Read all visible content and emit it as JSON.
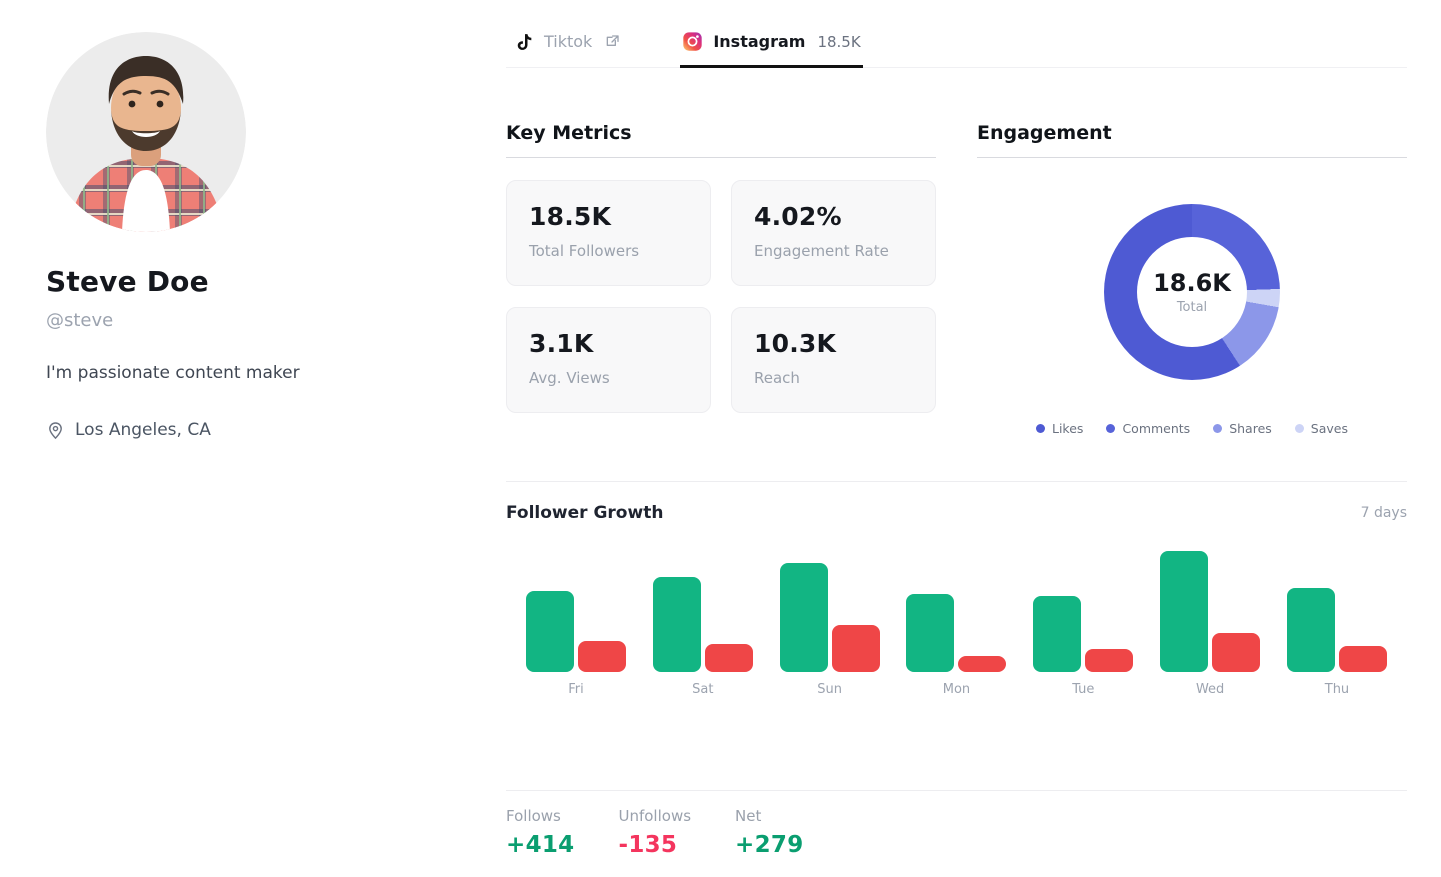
{
  "profile": {
    "name": "Steve Doe",
    "handle": "@steve",
    "bio": "I'm passionate content maker",
    "location": "Los Angeles, CA",
    "avatar_description": "smiling man with dark hair and beard wearing red plaid shirt"
  },
  "tabs": [
    {
      "label": "Tiktok",
      "active": false
    },
    {
      "label": "Instagram",
      "count": "18.5K",
      "active": true
    }
  ],
  "key_metrics": {
    "title": "Key Metrics",
    "cards": [
      {
        "value": "18.5K",
        "label": "Total Followers"
      },
      {
        "value": "4.02%",
        "label": "Engagement Rate"
      },
      {
        "value": "3.1K",
        "label": "Avg. Views"
      },
      {
        "value": "10.3K",
        "label": "Reach"
      }
    ]
  },
  "engagement": {
    "title": "Engagement",
    "center_value": "18.6K",
    "center_label": "Total"
  },
  "follower_growth": {
    "title": "Follower Growth",
    "period": "7 days",
    "stats": [
      {
        "label": "Follows",
        "value": "+414",
        "color": "#0a9e70"
      },
      {
        "label": "Unfollows",
        "value": "-135",
        "color": "#f4355e"
      },
      {
        "label": "Net",
        "value": "+279",
        "color": "#0a9e70"
      }
    ]
  },
  "chart_data": [
    {
      "type": "pie",
      "title": "Engagement",
      "style": "donut",
      "center_label": "18.6K",
      "center_sublabel": "Total",
      "legend_position": "bottom",
      "segments": [
        {
          "label": "Likes",
          "percent": 59,
          "color": "#4e5ad3"
        },
        {
          "label": "Comments",
          "percent": 25,
          "color": "#5763d9"
        },
        {
          "label": "Shares",
          "percent": 13,
          "color": "#8c97e9"
        },
        {
          "label": "Saves",
          "percent": 3,
          "color": "#cdd4f6"
        }
      ],
      "arcs_deg_clockwise_from_top": [
        {
          "label": "Comments",
          "color": "#5763d9",
          "from": 0,
          "to": 88
        },
        {
          "label": "Saves",
          "color": "#cdd4f6",
          "from": 88,
          "to": 100
        },
        {
          "label": "Shares",
          "color": "#8c97e9",
          "from": 100,
          "to": 147
        },
        {
          "label": "Likes",
          "color": "#4e5ad3",
          "from": 147,
          "to": 360
        }
      ]
    },
    {
      "type": "bar",
      "title": "Follower Growth",
      "period": "7 days",
      "categories": [
        "Fri",
        "Sat",
        "Sun",
        "Mon",
        "Tue",
        "Wed",
        "Thu"
      ],
      "series": [
        {
          "name": "Follows",
          "color": "#12b583",
          "values": [
            52,
            61,
            70,
            50,
            49,
            78,
            54
          ]
        },
        {
          "name": "Unfollows",
          "color": "#ef4647",
          "values": [
            20,
            18,
            30,
            10,
            15,
            25,
            17
          ]
        }
      ],
      "grid": false,
      "totals": {
        "follows": "+414",
        "unfollows": "-135",
        "net": "+279"
      }
    }
  ]
}
